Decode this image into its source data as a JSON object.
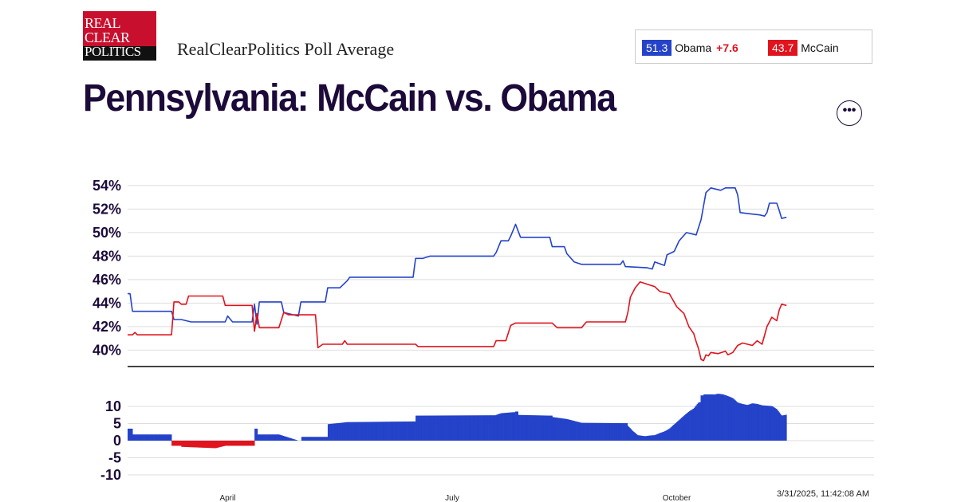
{
  "brand": {
    "logo_lines": [
      "REAL",
      "CLEAR",
      "POLITICS"
    ],
    "subtitle": "RealClearPolitics Poll Average"
  },
  "title": "Pennsylvania: McCain vs. Obama",
  "legend": {
    "obama": {
      "value": "51.3",
      "name": "Obama",
      "spread": "+7.6",
      "color": "#2443c9"
    },
    "mccain": {
      "value": "43.7",
      "name": "McCain",
      "color": "#e0141e"
    }
  },
  "more_button": "•••",
  "timestamp": "3/31/2025, 11:42:08 AM",
  "chart_data": [
    {
      "type": "line",
      "xlim": [
        0,
        300
      ],
      "ylim": [
        38.6,
        54.6
      ],
      "yticks": [
        40,
        42,
        44,
        46,
        48,
        50,
        52,
        54
      ],
      "ytick_labels": [
        "40%",
        "42%",
        "44%",
        "46%",
        "48%",
        "50%",
        "52%",
        "54%"
      ],
      "xticks": [
        {
          "x": 41,
          "label": "April"
        },
        {
          "x": 133,
          "label": "July"
        },
        {
          "x": 225,
          "label": "October"
        }
      ],
      "grid": true,
      "series": [
        {
          "name": "Obama",
          "color": "#2443c9",
          "points": [
            [
              0,
              44.8
            ],
            [
              1,
              44.8
            ],
            [
              2,
              43.3
            ],
            [
              8,
              43.3
            ],
            [
              18,
              43.3
            ],
            [
              19,
              42.6
            ],
            [
              22,
              42.6
            ],
            [
              26,
              42.4
            ],
            [
              40,
              42.4
            ],
            [
              41,
              42.9
            ],
            [
              43,
              42.4
            ],
            [
              51,
              42.4
            ],
            [
              52,
              43.9
            ],
            [
              53,
              42.2
            ],
            [
              54,
              44.1
            ],
            [
              63,
              44.1
            ],
            [
              64,
              43.2
            ],
            [
              70,
              42.9
            ],
            [
              71,
              44.1
            ],
            [
              81,
              44.1
            ],
            [
              82,
              45.3
            ],
            [
              87,
              45.3
            ],
            [
              90,
              45.9
            ],
            [
              91,
              46.2
            ],
            [
              117,
              46.2
            ],
            [
              118,
              47.8
            ],
            [
              121,
              47.8
            ],
            [
              124,
              48.0
            ],
            [
              150,
              48.0
            ],
            [
              151,
              48.3
            ],
            [
              153,
              49.3
            ],
            [
              156,
              49.3
            ],
            [
              157,
              49.7
            ],
            [
              159,
              50.7
            ],
            [
              161,
              49.6
            ],
            [
              173,
              49.6
            ],
            [
              174,
              48.8
            ],
            [
              179,
              48.8
            ],
            [
              180,
              48.2
            ],
            [
              183,
              47.5
            ],
            [
              186,
              47.3
            ],
            [
              202,
              47.3
            ],
            [
              203,
              47.6
            ],
            [
              204,
              47.1
            ],
            [
              213,
              47.0
            ],
            [
              215,
              46.9
            ],
            [
              216,
              47.5
            ],
            [
              220,
              47.2
            ],
            [
              221,
              48.1
            ],
            [
              224,
              48.4
            ],
            [
              226,
              49.3
            ],
            [
              229,
              50.0
            ],
            [
              233,
              49.8
            ],
            [
              235,
              51.1
            ],
            [
              237,
              53.4
            ],
            [
              239,
              53.8
            ],
            [
              243,
              53.6
            ],
            [
              245,
              53.8
            ],
            [
              249,
              53.8
            ],
            [
              250,
              53.2
            ],
            [
              251,
              51.7
            ],
            [
              255,
              51.6
            ],
            [
              259,
              51.5
            ],
            [
              261,
              51.4
            ],
            [
              262,
              51.7
            ],
            [
              263,
              52.5
            ],
            [
              266,
              52.5
            ],
            [
              267,
              51.9
            ],
            [
              268,
              51.2
            ],
            [
              270,
              51.3
            ]
          ]
        },
        {
          "name": "McCain",
          "color": "#e0141e",
          "points": [
            [
              0,
              41.3
            ],
            [
              2,
              41.3
            ],
            [
              3,
              41.5
            ],
            [
              4,
              41.3
            ],
            [
              18,
              41.3
            ],
            [
              19,
              44.1
            ],
            [
              21,
              44.1
            ],
            [
              22,
              43.9
            ],
            [
              24,
              43.9
            ],
            [
              25,
              44.6
            ],
            [
              39,
              44.6
            ],
            [
              40,
              43.8
            ],
            [
              51,
              43.8
            ],
            [
              52,
              41.6
            ],
            [
              53,
              43.1
            ],
            [
              54,
              41.9
            ],
            [
              62,
              41.9
            ],
            [
              64,
              43.2
            ],
            [
              66,
              43.0
            ],
            [
              77,
              43.0
            ],
            [
              78,
              40.2
            ],
            [
              80,
              40.5
            ],
            [
              88,
              40.5
            ],
            [
              89,
              40.8
            ],
            [
              90,
              40.5
            ],
            [
              118,
              40.5
            ],
            [
              119,
              40.3
            ],
            [
              150,
              40.3
            ],
            [
              151,
              40.8
            ],
            [
              155,
              40.8
            ],
            [
              157,
              42.1
            ],
            [
              159,
              42.3
            ],
            [
              174,
              42.3
            ],
            [
              176,
              41.9
            ],
            [
              186,
              41.9
            ],
            [
              188,
              42.4
            ],
            [
              204,
              42.4
            ],
            [
              205,
              43.2
            ],
            [
              206,
              44.5
            ],
            [
              208,
              45.3
            ],
            [
              210,
              45.8
            ],
            [
              213,
              45.6
            ],
            [
              216,
              45.4
            ],
            [
              218,
              45.0
            ],
            [
              222,
              44.8
            ],
            [
              225,
              43.7
            ],
            [
              228,
              43.1
            ],
            [
              230,
              42.0
            ],
            [
              232,
              41.4
            ],
            [
              233,
              40.7
            ],
            [
              234,
              40.1
            ],
            [
              235,
              39.2
            ],
            [
              236,
              39.1
            ],
            [
              237,
              39.6
            ],
            [
              238,
              39.5
            ],
            [
              239,
              39.8
            ],
            [
              242,
              39.7
            ],
            [
              245,
              39.9
            ],
            [
              246,
              39.6
            ],
            [
              248,
              39.8
            ],
            [
              250,
              40.4
            ],
            [
              252,
              40.6
            ],
            [
              256,
              40.4
            ],
            [
              258,
              40.8
            ],
            [
              260,
              40.5
            ],
            [
              262,
              42.0
            ],
            [
              264,
              42.8
            ],
            [
              266,
              42.5
            ],
            [
              267,
              43.4
            ],
            [
              268,
              43.9
            ],
            [
              270,
              43.8
            ]
          ]
        }
      ]
    },
    {
      "type": "bar",
      "title": "",
      "ylim": [
        -10,
        13
      ],
      "yticks": [
        10,
        5,
        0,
        -5,
        -10
      ],
      "ytick_labels": [
        "10",
        "5",
        "0",
        "-5",
        "-10"
      ],
      "colors": {
        "positive": "#2443c9",
        "negative": "#e0141e"
      },
      "series": [
        {
          "name": "Spread",
          "points": [
            [
              0,
              3.5
            ],
            [
              1,
              3.5
            ],
            [
              2,
              1.8
            ],
            [
              17,
              1.8
            ],
            [
              18,
              -1.5
            ],
            [
              21,
              -1.5
            ],
            [
              22,
              -1.8
            ],
            [
              36,
              -2.2
            ],
            [
              40,
              -1.5
            ],
            [
              51,
              -1.5
            ],
            [
              52,
              3.5
            ],
            [
              53,
              1.8
            ],
            [
              62,
              1.8
            ],
            [
              70,
              0
            ],
            [
              71,
              1.1
            ],
            [
              81,
              1.1
            ],
            [
              82,
              4.8
            ],
            [
              90,
              5.4
            ],
            [
              117,
              5.6
            ],
            [
              118,
              7.3
            ],
            [
              150,
              7.4
            ],
            [
              151,
              7.5
            ],
            [
              153,
              8.0
            ],
            [
              158,
              8.3
            ],
            [
              159,
              8.5
            ],
            [
              160,
              7.5
            ],
            [
              173,
              7.3
            ],
            [
              174,
              6.9
            ],
            [
              180,
              6.3
            ],
            [
              186,
              5.2
            ],
            [
              204,
              5.1
            ],
            [
              205,
              4.3
            ],
            [
              207,
              2.8
            ],
            [
              209,
              1.6
            ],
            [
              212,
              1.3
            ],
            [
              214,
              1.5
            ],
            [
              216,
              1.6
            ],
            [
              218,
              2.2
            ],
            [
              220,
              2.7
            ],
            [
              222,
              3.5
            ],
            [
              225,
              5.4
            ],
            [
              228,
              7.3
            ],
            [
              230,
              8.5
            ],
            [
              232,
              9.4
            ],
            [
              234,
              11.2
            ],
            [
              235,
              13.2
            ],
            [
              236,
              13.5
            ],
            [
              239,
              13.5
            ],
            [
              240,
              13.4
            ],
            [
              242,
              13.7
            ],
            [
              244,
              13.5
            ],
            [
              246,
              13.0
            ],
            [
              248,
              12.4
            ],
            [
              250,
              11.1
            ],
            [
              252,
              10.7
            ],
            [
              254,
              10.4
            ],
            [
              256,
              10.9
            ],
            [
              258,
              10.7
            ],
            [
              260,
              10.3
            ],
            [
              262,
              10.2
            ],
            [
              264,
              10.1
            ],
            [
              266,
              9.2
            ],
            [
              268,
              7.3
            ],
            [
              270,
              7.6
            ]
          ]
        }
      ]
    }
  ]
}
